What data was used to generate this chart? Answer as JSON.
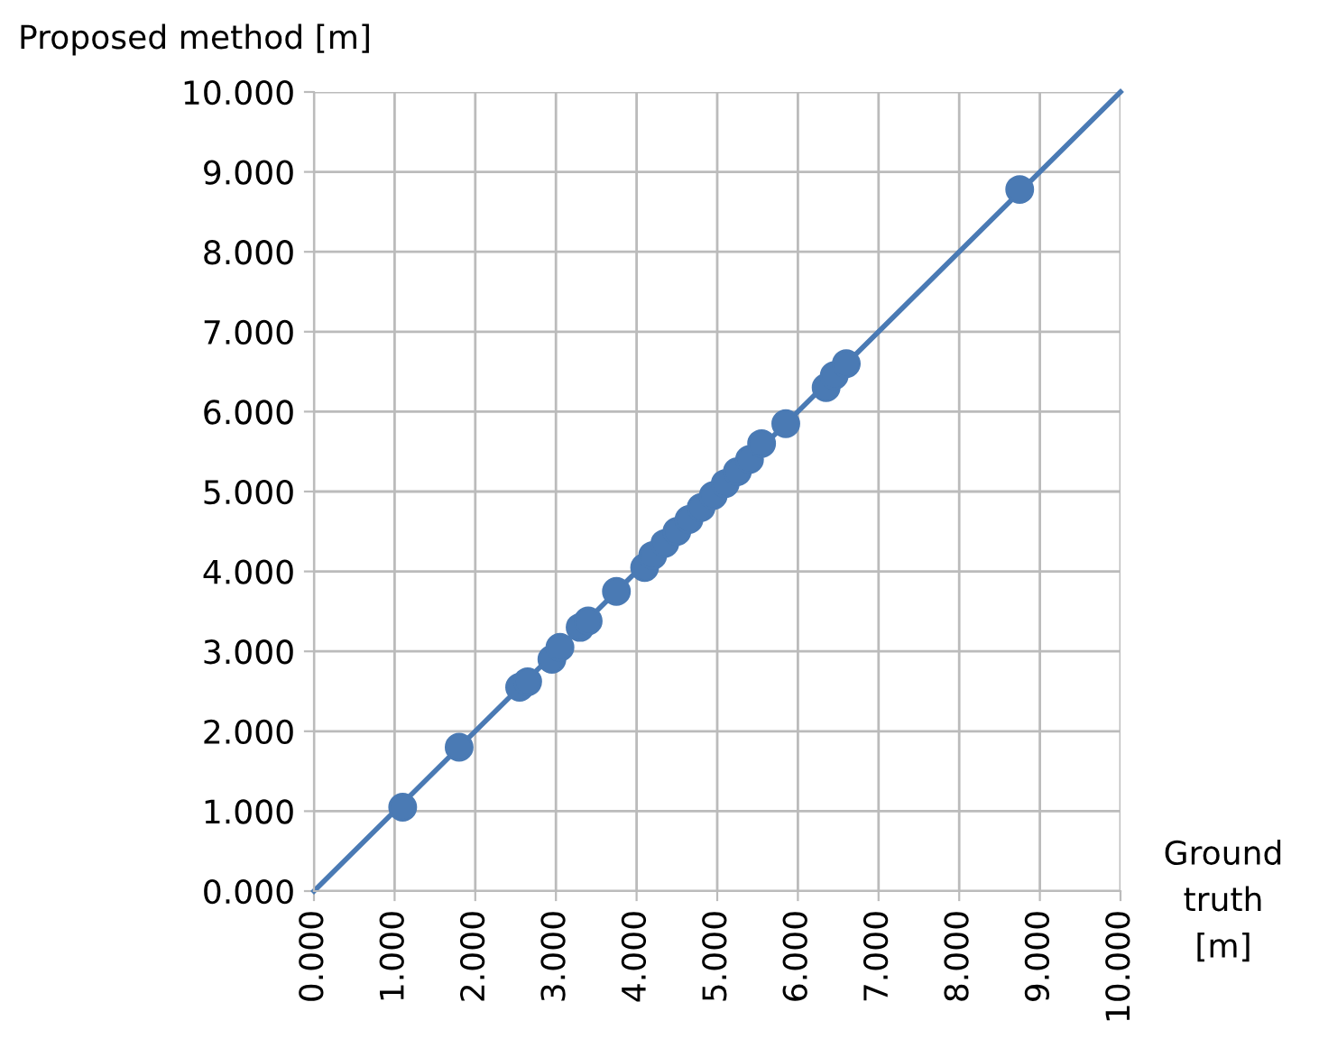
{
  "chart_data": {
    "type": "scatter",
    "xlabel": "Ground\ntruth\n[m]",
    "ylabel": "Proposed method [m]",
    "xlim": [
      0,
      10
    ],
    "ylim": [
      0,
      10
    ],
    "xticks": [
      {
        "value": 0,
        "label": "0.000"
      },
      {
        "value": 1,
        "label": "1.000"
      },
      {
        "value": 2,
        "label": "2.000"
      },
      {
        "value": 3,
        "label": "3.000"
      },
      {
        "value": 4,
        "label": "4.000"
      },
      {
        "value": 5,
        "label": "5.000"
      },
      {
        "value": 6,
        "label": "6.000"
      },
      {
        "value": 7,
        "label": "7.000"
      },
      {
        "value": 8,
        "label": "8.000"
      },
      {
        "value": 9,
        "label": "9.000"
      },
      {
        "value": 10,
        "label": "10.000"
      }
    ],
    "yticks": [
      {
        "value": 0,
        "label": "0.000"
      },
      {
        "value": 1,
        "label": "1.000"
      },
      {
        "value": 2,
        "label": "2.000"
      },
      {
        "value": 3,
        "label": "3.000"
      },
      {
        "value": 4,
        "label": "4.000"
      },
      {
        "value": 5,
        "label": "5.000"
      },
      {
        "value": 6,
        "label": "6.000"
      },
      {
        "value": 7,
        "label": "7.000"
      },
      {
        "value": 8,
        "label": "8.000"
      },
      {
        "value": 9,
        "label": "9.000"
      },
      {
        "value": 10,
        "label": "10.000"
      }
    ],
    "grid": true,
    "marker": "circle",
    "series": [
      {
        "color": "#4a7ab4",
        "x": [
          1.1,
          1.8,
          2.55,
          2.65,
          2.95,
          3.05,
          3.3,
          3.4,
          3.75,
          4.1,
          4.2,
          4.35,
          4.5,
          4.65,
          4.8,
          4.95,
          5.1,
          5.25,
          5.4,
          5.55,
          5.85,
          6.35,
          6.45,
          6.6,
          8.75
        ],
        "values": [
          1.05,
          1.8,
          2.55,
          2.62,
          2.9,
          3.05,
          3.3,
          3.38,
          3.75,
          4.05,
          4.2,
          4.35,
          4.5,
          4.65,
          4.8,
          4.95,
          5.1,
          5.25,
          5.4,
          5.6,
          5.85,
          6.3,
          6.45,
          6.6,
          8.78
        ]
      },
      {
        "type": "line",
        "color": "#4a7ab4",
        "marker": "none",
        "x": [
          0,
          10
        ],
        "values": [
          0,
          10
        ]
      }
    ]
  }
}
